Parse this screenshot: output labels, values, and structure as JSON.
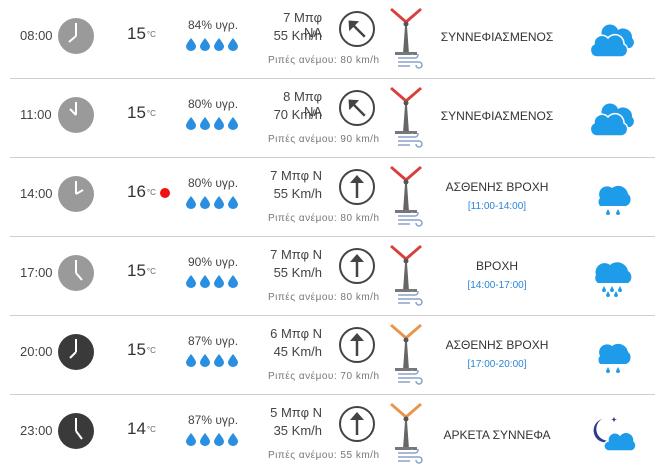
{
  "forecast": [
    {
      "time": "08:00",
      "temp": "15",
      "unit": "°C",
      "humidity": "84% υγρ.",
      "wind_force": "7 Μπφ ΝΑ",
      "wind_speed": "55 Km/h",
      "gusts": "Ριπές ανέμου: 80 km/h",
      "condition": "ΣΥΝΝΕΦΙΑΣΜΕΝΟΣ",
      "period": "",
      "arrow_icon": "arrow-nw-icon",
      "weather_icon": "cloudy-icon"
    },
    {
      "time": "11:00",
      "temp": "15",
      "unit": "°C",
      "humidity": "80% υγρ.",
      "wind_force": "8 Μπφ ΝΑ",
      "wind_speed": "70 Km/h",
      "gusts": "Ριπές ανέμου: 90 km/h",
      "condition": "ΣΥΝΝΕΦΙΑΣΜΕΝΟΣ",
      "period": "",
      "arrow_icon": "arrow-nw-icon",
      "weather_icon": "cloudy-icon"
    },
    {
      "time": "14:00",
      "temp": "16",
      "unit": "°C",
      "humidity": "80% υγρ.",
      "wind_force": "7 Μπφ Ν",
      "wind_speed": "55 Km/h",
      "gusts": "Ριπές ανέμου: 80 km/h",
      "condition": "ΑΣΘΕΝΗΣ ΒΡΟΧΗ",
      "period": "[11:00-14:00]",
      "arrow_icon": "arrow-up-icon",
      "weather_icon": "light-rain-icon"
    },
    {
      "time": "17:00",
      "temp": "15",
      "unit": "°C",
      "humidity": "90% υγρ.",
      "wind_force": "7 Μπφ Ν",
      "wind_speed": "55 Km/h",
      "gusts": "Ριπές ανέμου: 80 km/h",
      "condition": "ΒΡΟΧΗ",
      "period": "[14:00-17:00]",
      "arrow_icon": "arrow-up-icon",
      "weather_icon": "rain-icon"
    },
    {
      "time": "20:00",
      "temp": "15",
      "unit": "°C",
      "humidity": "87% υγρ.",
      "wind_force": "6 Μπφ Ν",
      "wind_speed": "45 Km/h",
      "gusts": "Ριπές ανέμου: 70 km/h",
      "condition": "ΑΣΘΕΝΗΣ ΒΡΟΧΗ",
      "period": "[17:00-20:00]",
      "arrow_icon": "arrow-up-icon",
      "weather_icon": "light-rain-icon"
    },
    {
      "time": "23:00",
      "temp": "14",
      "unit": "°C",
      "humidity": "87% υγρ.",
      "wind_force": "5 Μπφ Ν",
      "wind_speed": "35 Km/h",
      "gusts": "Ριπές ανέμου: 55 km/h",
      "condition": "ΑΡΚΕΤΑ ΣΥΝΝΕΦΑ",
      "period": "",
      "arrow_icon": "arrow-up-icon",
      "weather_icon": "night-partly-cloudy-icon"
    }
  ],
  "colors": {
    "accent_blue": "#2a84d6",
    "cloud_blue": "#1e9be9",
    "drop_blue": "#2a8fe0",
    "turbine_red": "#d9403c",
    "turbine_orange": "#e8954a",
    "alert_red": "#e11111",
    "clock_day": "#9a9a9a",
    "clock_night": "#3a3a3a"
  }
}
